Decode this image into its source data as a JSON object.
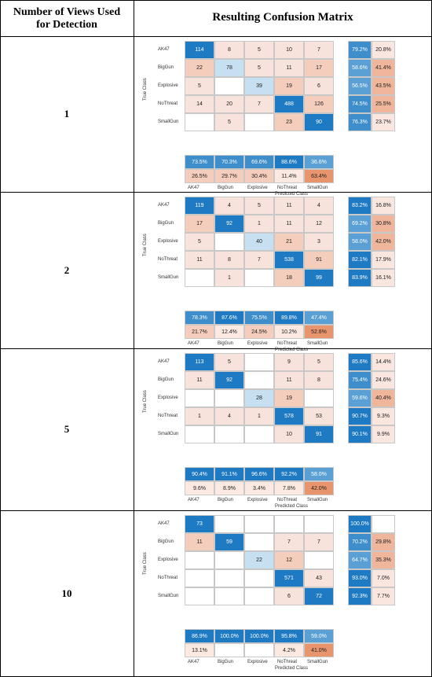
{
  "header": {
    "col1": "Number of Views Used for Detection",
    "col2": "Resulting Confusion Matrix"
  },
  "axis": {
    "true_class": "True Class",
    "predicted_class": "Predicted Class"
  },
  "class_labels": [
    "AK47",
    "BigGun",
    "Explosive",
    "NoThreat",
    "SmallGun"
  ],
  "rows": [
    {
      "views": "1",
      "matrix": [
        [
          "114",
          "8",
          "5",
          "10",
          "7"
        ],
        [
          "22",
          "78",
          "5",
          "11",
          "17"
        ],
        [
          "5",
          "",
          "39",
          "19",
          "6"
        ],
        [
          "14",
          "20",
          "7",
          "488",
          "126"
        ],
        [
          "",
          "5",
          "",
          "23",
          "90"
        ]
      ],
      "row_summary": [
        [
          "79.2%",
          "20.8%"
        ],
        [
          "58.6%",
          "41.4%"
        ],
        [
          "56.5%",
          "43.5%"
        ],
        [
          "74.5%",
          "25.5%"
        ],
        [
          "76.3%",
          "23.7%"
        ]
      ],
      "col_summary": [
        [
          "73.5%",
          "70.3%",
          "69.6%",
          "88.6%",
          "36.6%"
        ],
        [
          "26.5%",
          "29.7%",
          "30.4%",
          "11.4%",
          "63.4%"
        ]
      ]
    },
    {
      "views": "2",
      "matrix": [
        [
          "119",
          "4",
          "5",
          "11",
          "4"
        ],
        [
          "17",
          "92",
          "1",
          "11",
          "12"
        ],
        [
          "5",
          "",
          "40",
          "21",
          "3"
        ],
        [
          "11",
          "8",
          "7",
          "538",
          "91"
        ],
        [
          "",
          "1",
          "",
          "18",
          "99"
        ]
      ],
      "row_summary": [
        [
          "83.2%",
          "16.8%"
        ],
        [
          "69.2%",
          "30.8%"
        ],
        [
          "58.0%",
          "42.0%"
        ],
        [
          "82.1%",
          "17.9%"
        ],
        [
          "83.9%",
          "16.1%"
        ]
      ],
      "col_summary": [
        [
          "78.3%",
          "87.6%",
          "75.5%",
          "89.8%",
          "47.4%"
        ],
        [
          "21.7%",
          "12.4%",
          "24.5%",
          "10.2%",
          "52.6%"
        ]
      ]
    },
    {
      "views": "5",
      "matrix": [
        [
          "113",
          "5",
          "",
          "9",
          "5"
        ],
        [
          "11",
          "92",
          "",
          "11",
          "8"
        ],
        [
          "",
          "",
          "28",
          "19",
          ""
        ],
        [
          "1",
          "4",
          "1",
          "578",
          "53"
        ],
        [
          "",
          "",
          "",
          "10",
          "91"
        ]
      ],
      "row_summary": [
        [
          "85.6%",
          "14.4%"
        ],
        [
          "75.4%",
          "24.6%"
        ],
        [
          "59.6%",
          "40.4%"
        ],
        [
          "90.7%",
          "9.3%"
        ],
        [
          "90.1%",
          "9.9%"
        ]
      ],
      "col_summary": [
        [
          "90.4%",
          "91.1%",
          "96.6%",
          "92.2%",
          "58.0%"
        ],
        [
          "9.6%",
          "8.9%",
          "3.4%",
          "7.8%",
          "42.0%"
        ]
      ]
    },
    {
      "views": "10",
      "matrix": [
        [
          "73",
          "",
          "",
          "",
          ""
        ],
        [
          "11",
          "59",
          "",
          "7",
          "7"
        ],
        [
          "",
          "",
          "22",
          "12",
          ""
        ],
        [
          "",
          "",
          "",
          "571",
          "43"
        ],
        [
          "",
          "",
          "",
          "6",
          "72"
        ]
      ],
      "row_summary": [
        [
          "100.0%",
          ""
        ],
        [
          "70.2%",
          "29.8%"
        ],
        [
          "64.7%",
          "35.3%"
        ],
        [
          "93.0%",
          "7.0%"
        ],
        [
          "92.3%",
          "7.7%"
        ]
      ],
      "col_summary": [
        [
          "86.9%",
          "100.0%",
          "100.0%",
          "95.8%",
          "59.0%"
        ],
        [
          "13.1%",
          "",
          "",
          "4.2%",
          "41.0%"
        ]
      ]
    }
  ]
}
